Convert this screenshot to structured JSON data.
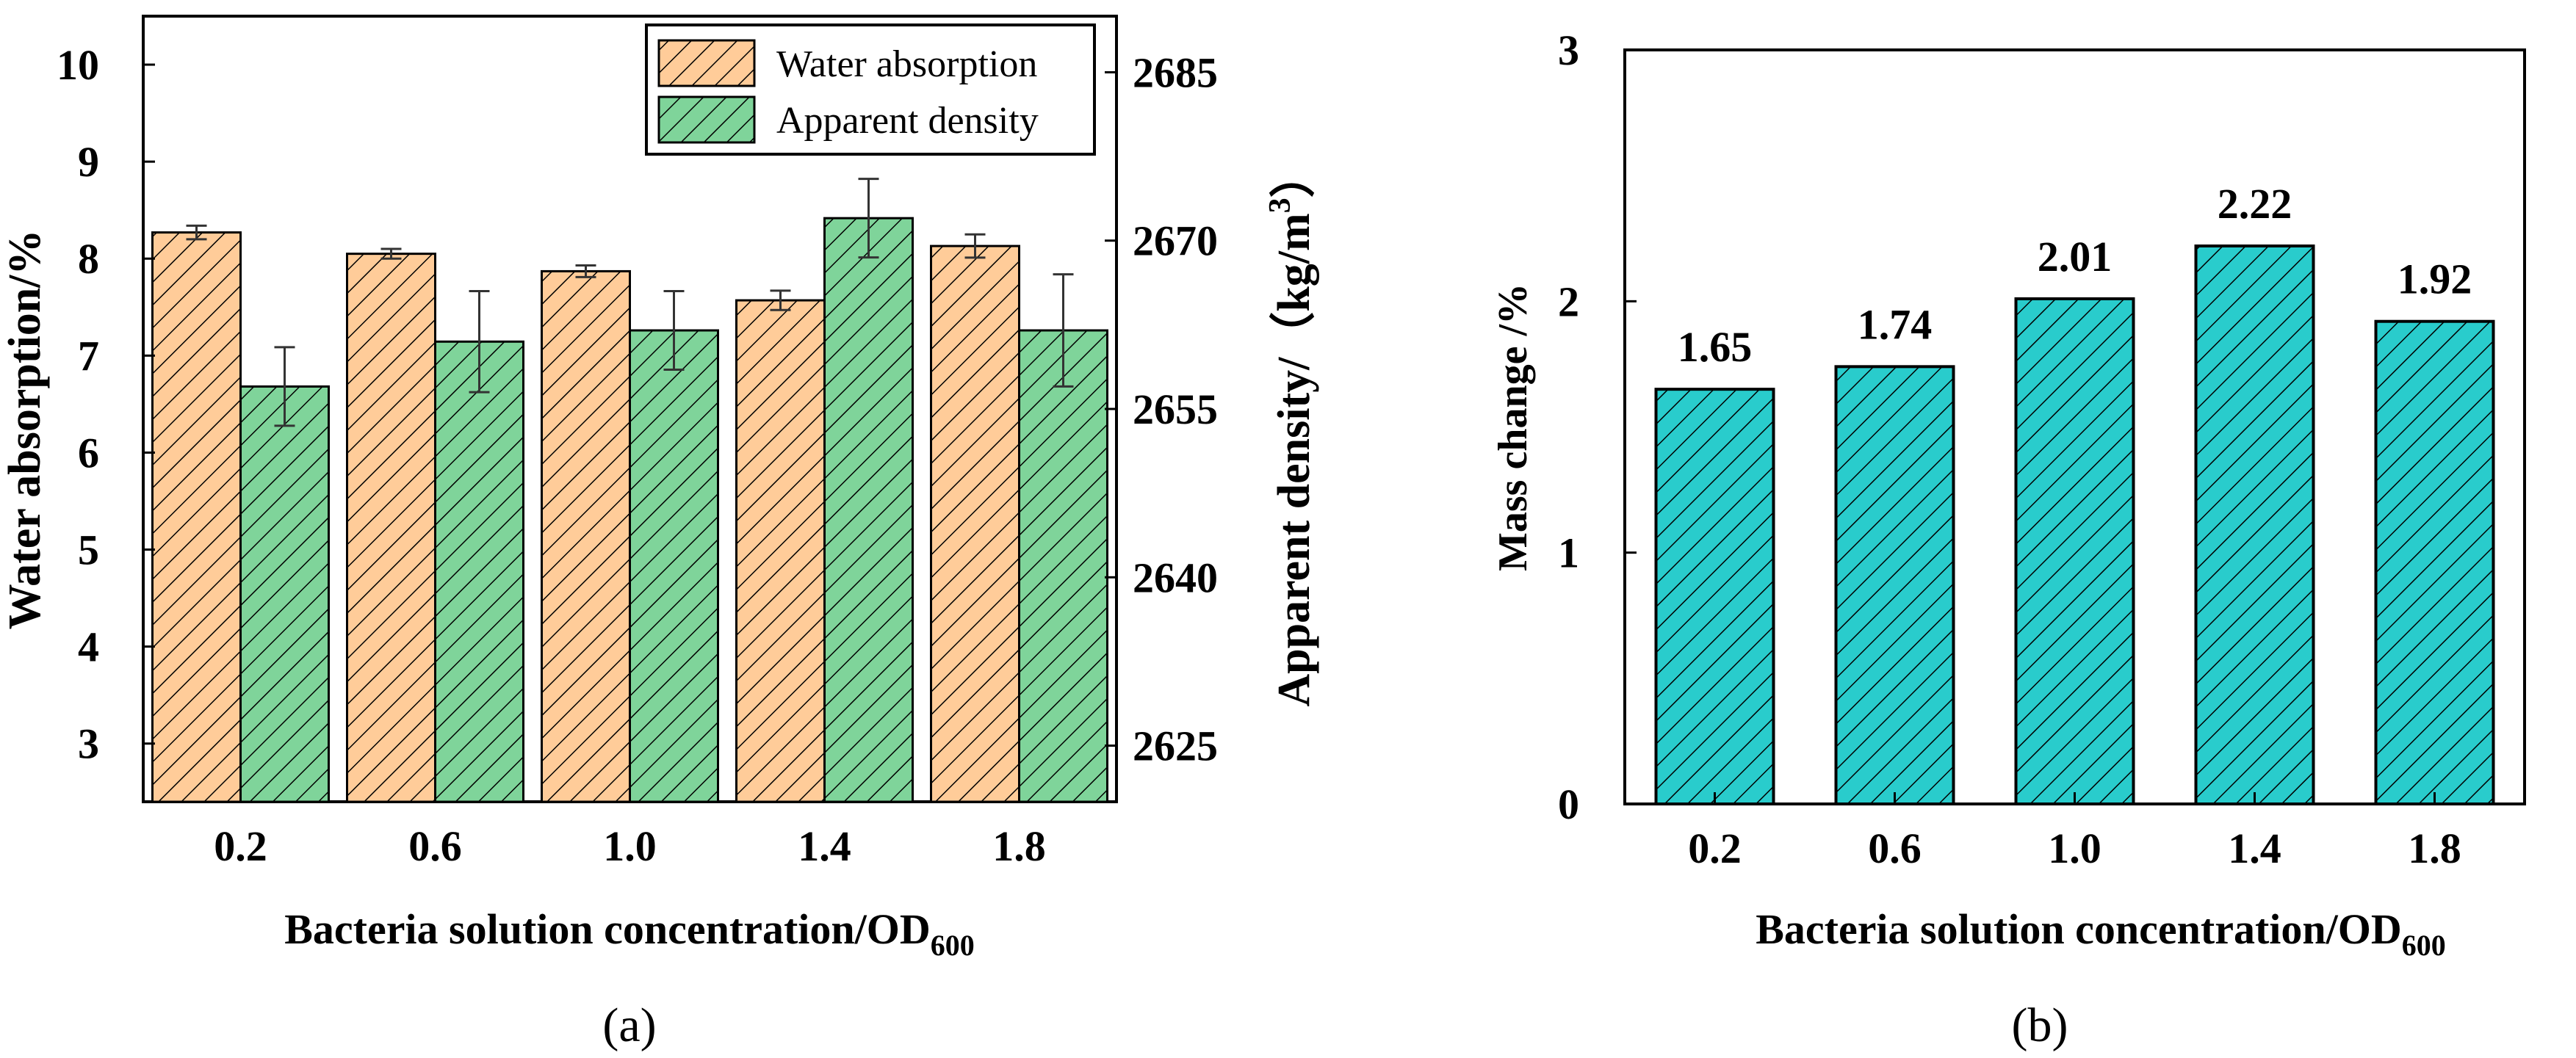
{
  "chart_data": [
    {
      "type": "bar",
      "panel": "a",
      "caption": "(a)",
      "categories": [
        "0.2",
        "0.6",
        "1.0",
        "1.4",
        "1.8"
      ],
      "xlabel_main": "Bacteria solution concentration/OD",
      "xlabel_sub": "600",
      "ylabel": "Water absorption/%",
      "ylim": [
        2.4,
        10.5
      ],
      "yticks": [
        "3",
        "4",
        "5",
        "6",
        "7",
        "8",
        "9",
        "10"
      ],
      "y2label": "Apparent density/（kg/m",
      "y2label_sup": "3",
      "y2label_end": "）",
      "y2lim": [
        2620,
        2690
      ],
      "y2ticks": [
        "2625",
        "2640",
        "2655",
        "2670",
        "2685"
      ],
      "legend": "top-right",
      "series": [
        {
          "name": "Water absorption",
          "axis": "left",
          "color": "#FFCC99",
          "values": [
            8.27,
            8.05,
            7.87,
            7.57,
            8.13
          ],
          "errors": [
            0.07,
            0.05,
            0.06,
            0.1,
            0.12
          ]
        },
        {
          "name": "Apparent density",
          "axis": "right",
          "color": "#7FD49A",
          "values": [
            2657,
            2661,
            2662,
            2672,
            2662
          ],
          "errors": [
            3.5,
            4.5,
            3.5,
            3.5,
            5.0
          ]
        }
      ]
    },
    {
      "type": "bar",
      "panel": "b",
      "caption": "(b)",
      "categories": [
        "0.2",
        "0.6",
        "1.0",
        "1.4",
        "1.8"
      ],
      "values": [
        1.65,
        1.74,
        2.01,
        2.22,
        1.92
      ],
      "data_labels": [
        "1.65",
        "1.74",
        "2.01",
        "2.22",
        "1.92"
      ],
      "color": "#29CCCC",
      "xlabel_main": "Bacteria solution concentration/OD",
      "xlabel_sub": "600",
      "ylabel": "Mass change /%",
      "ylim": [
        0,
        3
      ],
      "yticks": [
        "0",
        "1",
        "2",
        "3"
      ]
    }
  ]
}
